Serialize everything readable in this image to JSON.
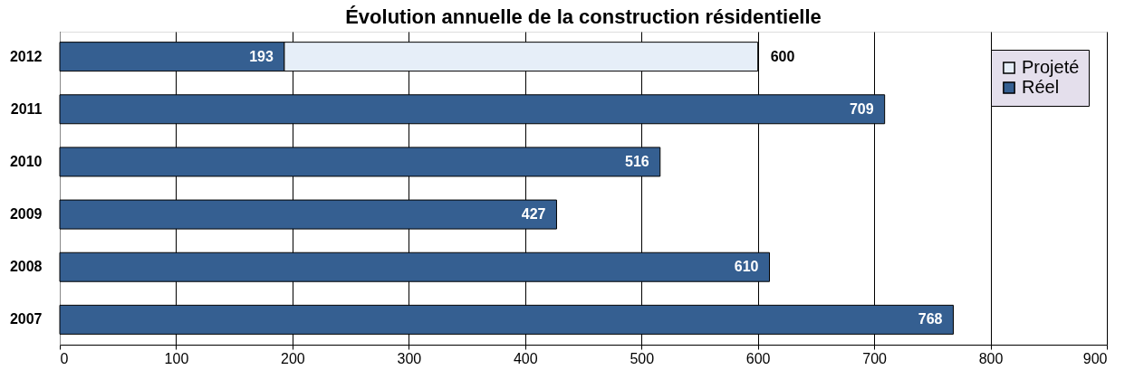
{
  "chart_data": {
    "type": "bar",
    "orientation": "horizontal",
    "stacked": true,
    "title": "Évolution annuelle de la construction résidentielle",
    "categories": [
      "2012",
      "2011",
      "2010",
      "2009",
      "2008",
      "2007"
    ],
    "series": [
      {
        "name": "Réel",
        "color": "#355f91",
        "values": [
          193,
          709,
          516,
          427,
          610,
          768
        ],
        "value_labels": [
          "193",
          "709",
          "516",
          "427",
          "610",
          "768"
        ]
      },
      {
        "name": "Projeté",
        "color": "#e6eef8",
        "values": [
          407,
          null,
          null,
          null,
          null,
          null
        ]
      }
    ],
    "totals": [
      "600",
      null,
      null,
      null,
      null,
      null
    ],
    "xlim": [
      0,
      900
    ],
    "xticks": [
      0,
      100,
      200,
      300,
      400,
      500,
      600,
      700,
      800,
      900
    ],
    "grid": "x",
    "legend": "top right"
  }
}
